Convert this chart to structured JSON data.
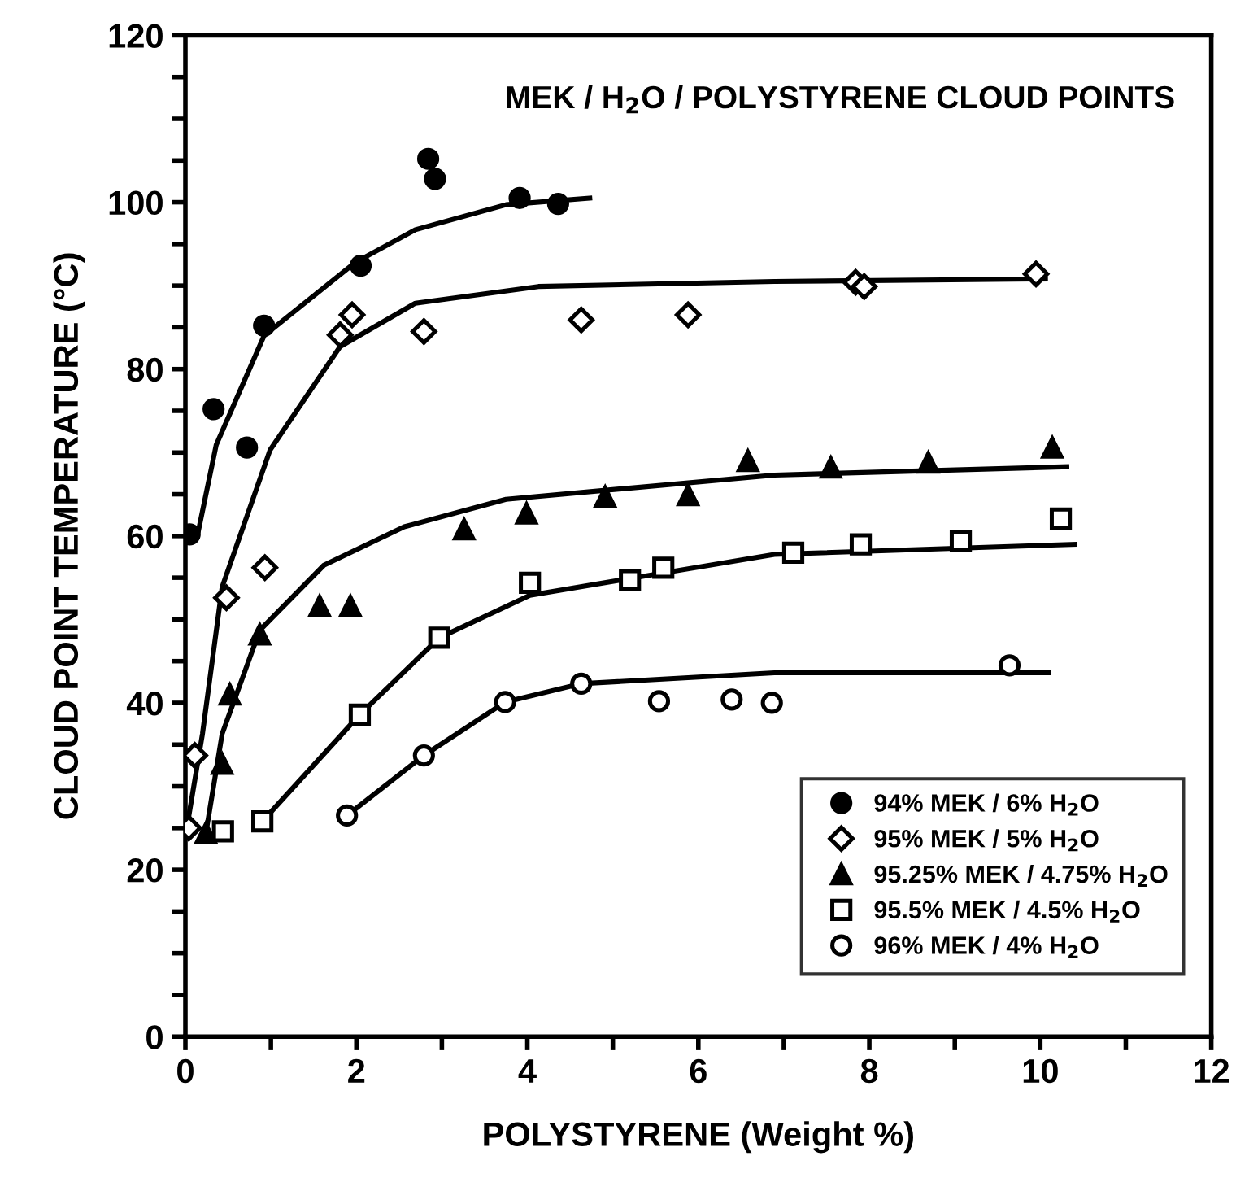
{
  "chart_data": {
    "type": "scatter",
    "title": "MEK / H$_{2}$O / POLYSTYRENE CLOUD POINTS",
    "xlabel": "POLYSTYRENE (Weight %)",
    "ylabel": "CLOUD POINT TEMPERATURE (°C)",
    "xlim": [
      0,
      12
    ],
    "ylim": [
      0,
      120
    ],
    "xticks": [
      0,
      {
        "value": 1,
        "label": null
      },
      2,
      {
        "value": 3,
        "label": null
      },
      4,
      {
        "value": 5,
        "label": null
      },
      6,
      {
        "value": 7,
        "label": null
      },
      8,
      {
        "value": 9,
        "label": null
      },
      10,
      {
        "value": 11,
        "label": null
      },
      12
    ],
    "yticks": [
      0,
      {
        "value": 5,
        "label": null
      },
      {
        "value": 10,
        "label": null
      },
      {
        "value": 15,
        "label": null
      },
      20,
      {
        "value": 25,
        "label": null
      },
      {
        "value": 30,
        "label": null
      },
      {
        "value": 35,
        "label": null
      },
      40,
      {
        "value": 45,
        "label": null
      },
      {
        "value": 50,
        "label": null
      },
      {
        "value": 55,
        "label": null
      },
      60,
      {
        "value": 65,
        "label": null
      },
      {
        "value": 70,
        "label": null
      },
      {
        "value": 75,
        "label": null
      },
      80,
      {
        "value": 85,
        "label": null
      },
      {
        "value": 90,
        "label": null
      },
      {
        "value": 95,
        "label": null
      },
      100,
      {
        "value": 105,
        "label": null
      },
      {
        "value": 110,
        "label": null
      },
      {
        "value": 115,
        "label": null
      },
      120
    ],
    "grid": false,
    "legend": "bottom right",
    "series": [
      {
        "name": "94% MEK / 6% H$_{2}$O",
        "color": "#000000",
        "marker": "circle",
        "x": [
          0.05,
          0.33,
          0.72,
          0.92,
          2.05,
          2.84,
          2.92,
          3.91,
          4.36
        ],
        "values": [
          60.2,
          75.2,
          70.6,
          85.2,
          92.4,
          105.2,
          102.8,
          100.5,
          99.8
        ]
      },
      {
        "name": "95% MEK / 5% H$_{2}$O",
        "color": "#ffffff",
        "marker": "diamond",
        "x": [
          0.04,
          0.11,
          0.48,
          0.93,
          1.81,
          1.95,
          2.79,
          4.63,
          5.88,
          7.84,
          7.94,
          9.95
        ],
        "values": [
          25.0,
          33.7,
          52.6,
          56.2,
          84.1,
          86.5,
          84.5,
          85.9,
          86.5,
          90.4,
          89.9,
          91.4
        ]
      },
      {
        "name": "95.25% MEK / 4.75% H$_{2}$O",
        "color": "#000000",
        "marker": "triangle",
        "x": [
          0.24,
          0.43,
          0.52,
          0.87,
          1.57,
          1.93,
          3.26,
          3.99,
          4.91,
          5.88,
          6.58,
          7.55,
          8.69,
          10.14
        ],
        "values": [
          24.4,
          32.7,
          41.0,
          48.2,
          51.6,
          51.6,
          60.8,
          62.7,
          64.7,
          64.9,
          69.0,
          68.2,
          68.8,
          70.6
        ]
      },
      {
        "name": "95.5% MEK / 4.5% H$_{2}$O",
        "color": "#ffffff",
        "marker": "square",
        "x": [
          0.44,
          0.9,
          2.04,
          2.97,
          4.03,
          5.2,
          5.59,
          7.11,
          7.9,
          9.07,
          10.24
        ],
        "values": [
          24.6,
          25.8,
          38.6,
          47.8,
          54.4,
          54.7,
          56.2,
          58.0,
          59.0,
          59.4,
          62.1
        ]
      },
      {
        "name": "96% MEK / 4% H$_{2}$O",
        "color": "#ffffff",
        "marker": "circle",
        "x": [
          1.89,
          2.79,
          3.74,
          4.63,
          5.54,
          6.39,
          6.86,
          9.64
        ],
        "values": [
          26.5,
          33.7,
          40.1,
          42.3,
          40.2,
          40.4,
          40.0,
          44.5
        ]
      },
      {
        "type": "line",
        "color": "#000000",
        "marker": "none",
        "x": [
          0,
          0.15,
          0.36,
          0.92,
          1.99,
          2.69,
          3.75,
          4.73
        ],
        "values": [
          60,
          60.5,
          70.9,
          84,
          92.8,
          96.7,
          99.7,
          100.5
        ]
      },
      {
        "type": "line",
        "color": "#000000",
        "marker": "none",
        "x": [
          0.02,
          0.2,
          0.43,
          0.99,
          1.81,
          2.69,
          4.13,
          6.89,
          10.06
        ],
        "values": [
          25.2,
          36.3,
          53.9,
          70.3,
          82.7,
          87.9,
          89.9,
          90.5,
          90.8
        ]
      },
      {
        "type": "line",
        "color": "#000000",
        "marker": "none",
        "x": [
          0.24,
          0.43,
          0.87,
          1.62,
          2.56,
          3.75,
          6.89,
          10.31
        ],
        "values": [
          24.4,
          36.3,
          48.7,
          56.5,
          61.1,
          64.4,
          67.3,
          68.3
        ]
      },
      {
        "type": "line",
        "color": "#000000",
        "marker": "none",
        "x": [
          0.9,
          2.04,
          2.97,
          4.03,
          6.89,
          10.4
        ],
        "values": [
          25.8,
          38.6,
          47.8,
          52.9,
          57.8,
          59.0
        ]
      },
      {
        "type": "line",
        "color": "#000000",
        "marker": "none",
        "x": [
          1.89,
          2.79,
          3.74,
          4.63,
          6.89,
          10.1
        ],
        "values": [
          26.5,
          33.7,
          40.1,
          42.3,
          43.6,
          43.6
        ]
      }
    ]
  }
}
